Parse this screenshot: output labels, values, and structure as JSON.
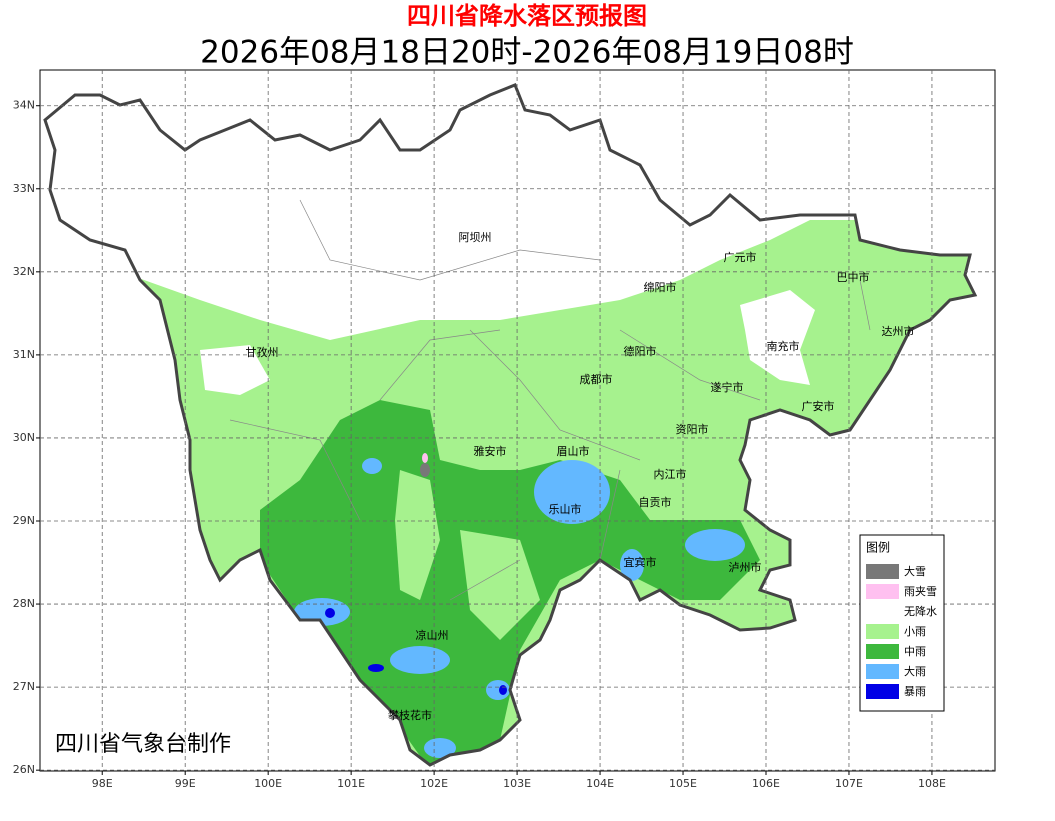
{
  "header": {
    "title": "四川省降水落区预报图",
    "subtitle": "2026年08月18日20时-2026年08月19日08时"
  },
  "map": {
    "xlim": [
      97.25,
      108.76
    ],
    "ylim": [
      25.99,
      34.43
    ],
    "xticks": [
      {
        "value": 98,
        "label": "98E"
      },
      {
        "value": 99,
        "label": "99E"
      },
      {
        "value": 100,
        "label": "100E"
      },
      {
        "value": 101,
        "label": "101E"
      },
      {
        "value": 102,
        "label": "102E"
      },
      {
        "value": 103,
        "label": "103E"
      },
      {
        "value": 104,
        "label": "104E"
      },
      {
        "value": 105,
        "label": "105E"
      },
      {
        "value": 106,
        "label": "106E"
      },
      {
        "value": 107,
        "label": "107E"
      },
      {
        "value": 108,
        "label": "108E"
      }
    ],
    "yticks": [
      {
        "value": 26,
        "label": "26N"
      },
      {
        "value": 27,
        "label": "27N"
      },
      {
        "value": 28,
        "label": "28N"
      },
      {
        "value": 29,
        "label": "29N"
      },
      {
        "value": 30,
        "label": "30N"
      },
      {
        "value": 31,
        "label": "31N"
      },
      {
        "value": 32,
        "label": "32N"
      },
      {
        "value": 33,
        "label": "33N"
      },
      {
        "value": 34,
        "label": "34N"
      }
    ],
    "grid": true
  },
  "cities": [
    "阿坝州",
    "广元市",
    "巴中市",
    "绵阳市",
    "甘孜州",
    "德阳市",
    "南充市",
    "达州市",
    "成都市",
    "遂宁市",
    "广安市",
    "资阳市",
    "雅安市",
    "眉山市",
    "内江市",
    "乐山市",
    "自贡市",
    "宜宾市",
    "泸州市",
    "凉山州",
    "攀枝花市"
  ],
  "legend": {
    "title": "图例",
    "items": [
      {
        "name": "大雪",
        "color": "#787878"
      },
      {
        "name": "雨夹雪",
        "color": "#ffc0f0"
      },
      {
        "name": "无降水",
        "color": "#ffffff"
      },
      {
        "name": "小雨",
        "color": "#a6f28e"
      },
      {
        "name": "中雨",
        "color": "#3db83d"
      },
      {
        "name": "大雨",
        "color": "#63b8ff"
      },
      {
        "name": "暴雨",
        "color": "#0000e6"
      }
    ]
  },
  "credit": "四川省气象台制作"
}
